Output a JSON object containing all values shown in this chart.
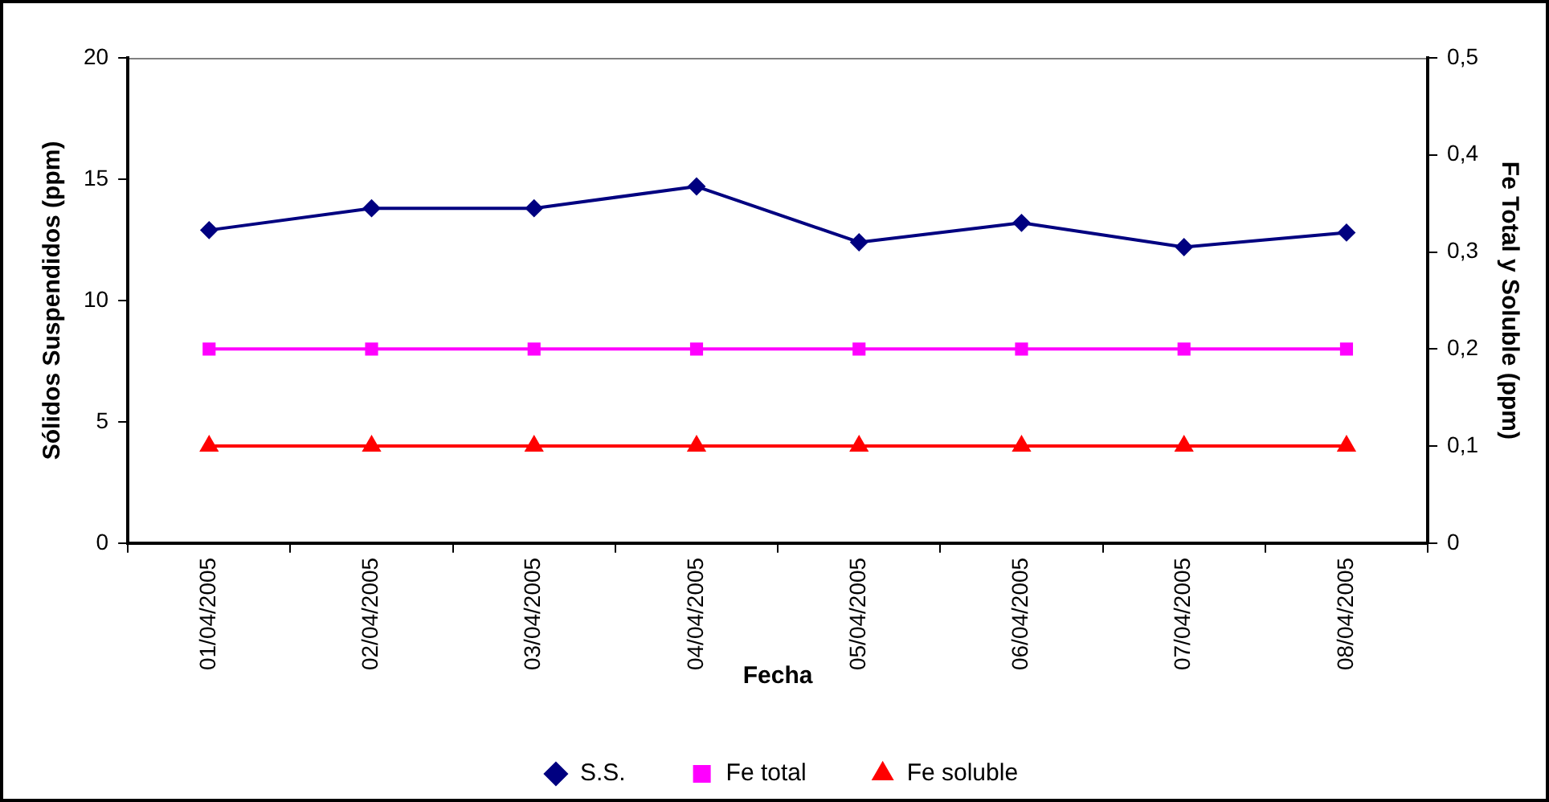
{
  "chart_data": {
    "type": "line",
    "xlabel": "Fecha",
    "ylabel": "Sólidos Suspendidos (ppm)",
    "y2label": "Fe Total y Soluble (ppm)",
    "categories": [
      "01/04/2005",
      "02/04/2005",
      "03/04/2005",
      "04/04/2005",
      "05/04/2005",
      "06/04/2005",
      "07/04/2005",
      "08/04/2005"
    ],
    "series": [
      {
        "name": "S.S.",
        "color": "#000080",
        "marker": "diamond",
        "values": [
          12.9,
          13.8,
          13.8,
          14.7,
          12.4,
          13.2,
          12.2,
          12.8
        ]
      },
      {
        "name": "Fe total",
        "color": "#ff00ff",
        "marker": "square",
        "axis": "y2",
        "values": [
          0.2,
          0.2,
          0.2,
          0.2,
          0.2,
          0.2,
          0.2,
          0.2
        ]
      },
      {
        "name": "Fe soluble",
        "color": "#ff0000",
        "marker": "triangle",
        "axis": "y2",
        "values": [
          0.1,
          0.1,
          0.1,
          0.1,
          0.1,
          0.1,
          0.1,
          0.1
        ]
      }
    ],
    "ylim": [
      0,
      20
    ],
    "yticks": [
      0,
      5,
      10,
      15,
      20
    ],
    "y2lim": [
      0,
      0.5
    ],
    "y2ticks": [
      {
        "value": 0,
        "label": "0"
      },
      {
        "value": 0.1,
        "label": "0,1"
      },
      {
        "value": 0.2,
        "label": "0,2"
      },
      {
        "value": 0.3,
        "label": "0,3"
      },
      {
        "value": 0.4,
        "label": "0,4"
      },
      {
        "value": 0.5,
        "label": "0,5"
      }
    ],
    "grid": false,
    "legend": "bottom",
    "line_style": "solid"
  }
}
